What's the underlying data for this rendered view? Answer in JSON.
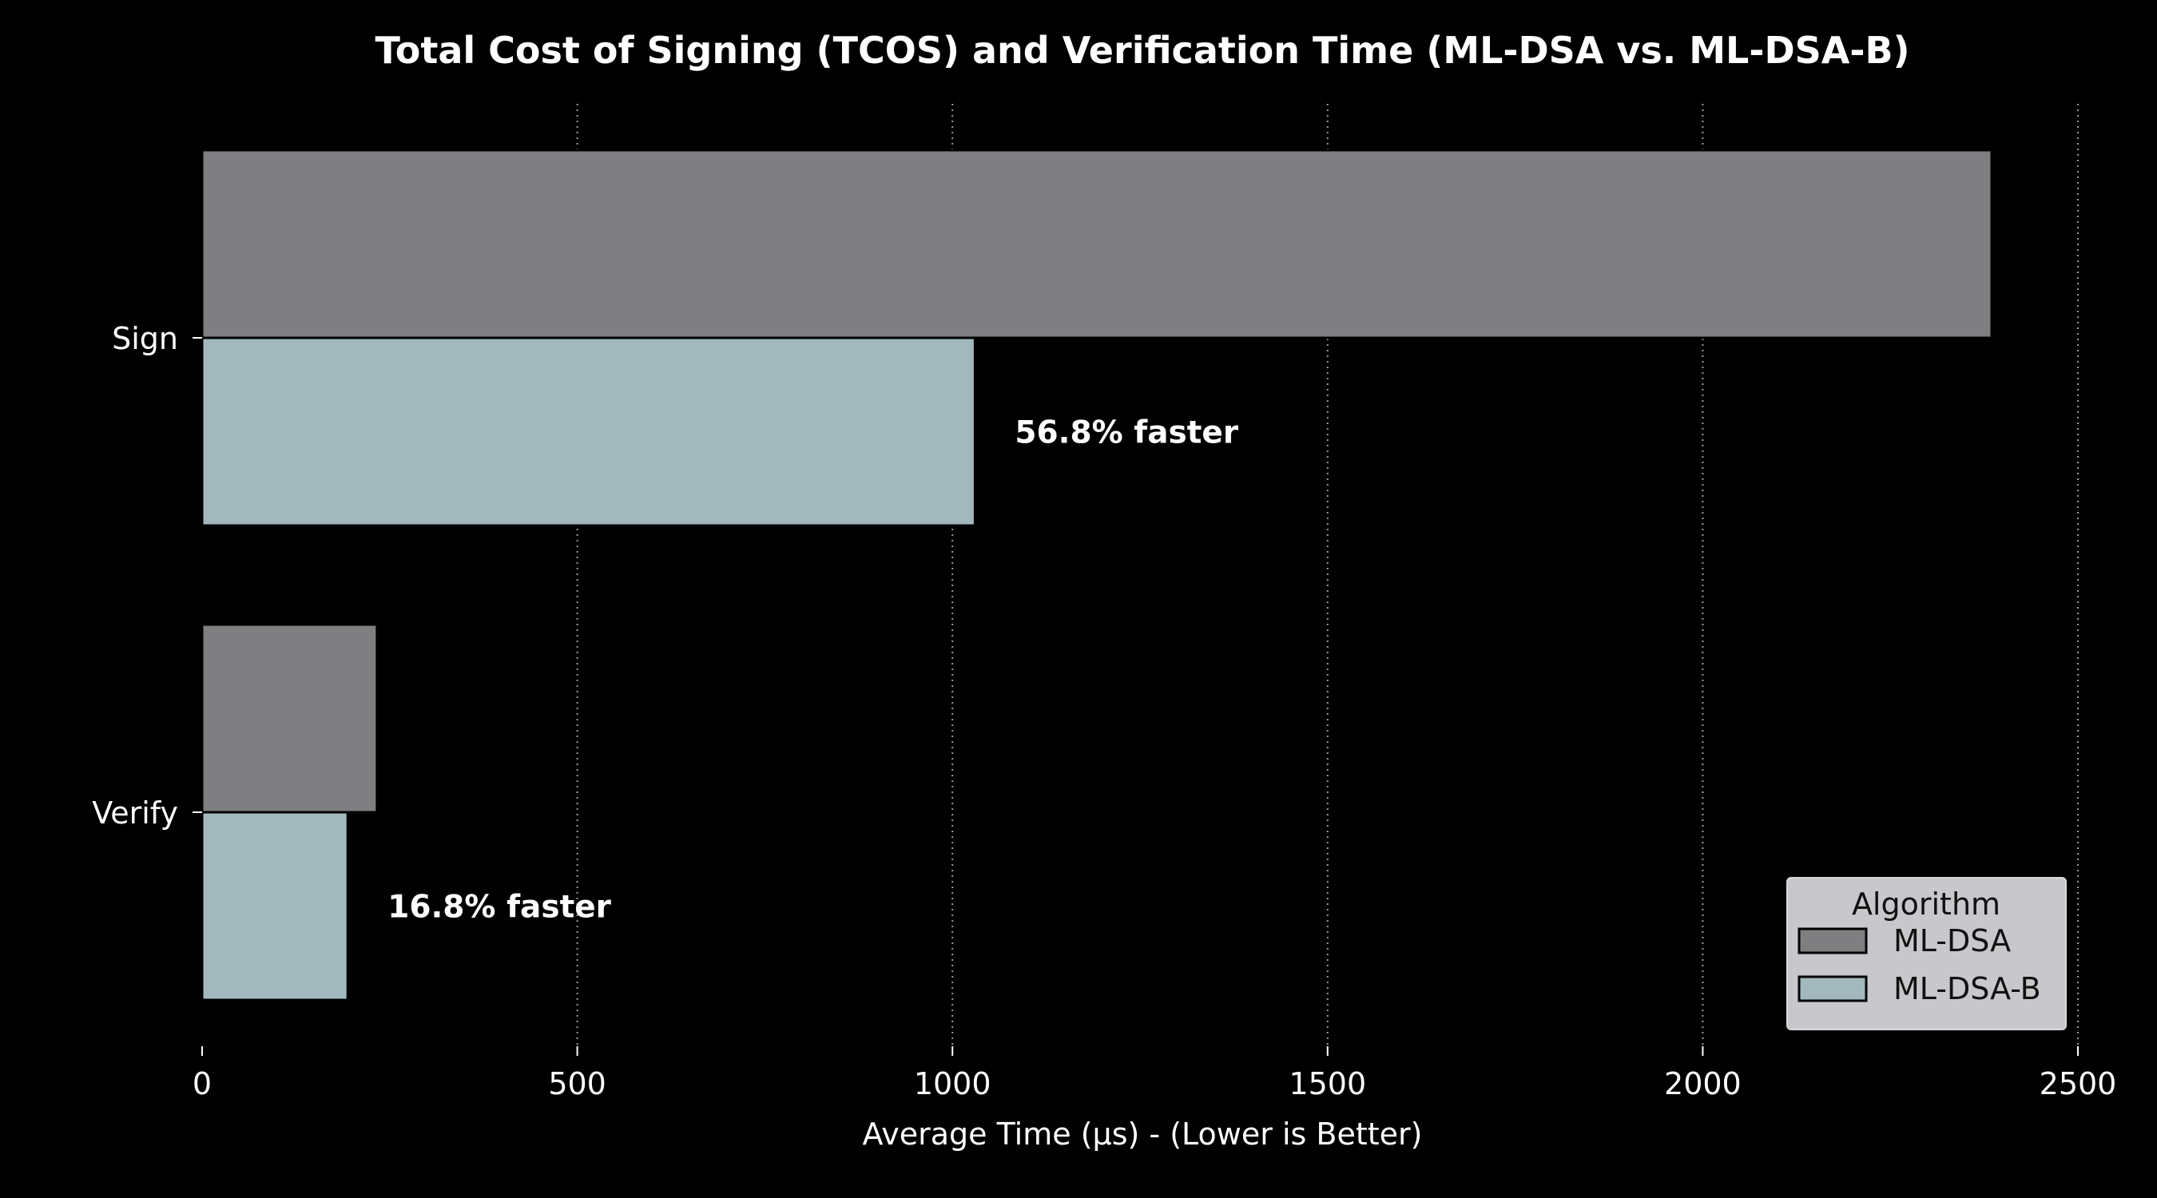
{
  "chart_data": {
    "type": "bar",
    "orientation": "horizontal",
    "title": "Total Cost of Signing (TCOS) and Verification Time (ML-DSA vs. ML-DSA-B)",
    "xlabel": "Average Time (μs) - (Lower is Better)",
    "ylabel": "",
    "categories": [
      "Sign",
      "Verify"
    ],
    "series": [
      {
        "name": "ML-DSA",
        "values": [
          2385,
          233
        ],
        "color": "#7f7e80"
      },
      {
        "name": "ML-DSA-B",
        "values": [
          1030,
          194
        ],
        "color": "#a2b8bd"
      }
    ],
    "annotations": [
      "56.8% faster",
      "16.8% faster"
    ],
    "xlim": [
      0,
      2500
    ],
    "xticks": [
      0,
      500,
      1000,
      1500,
      2000,
      2500
    ],
    "grid": "x",
    "legend": {
      "title": "Algorithm",
      "position": "bottom-right"
    }
  }
}
